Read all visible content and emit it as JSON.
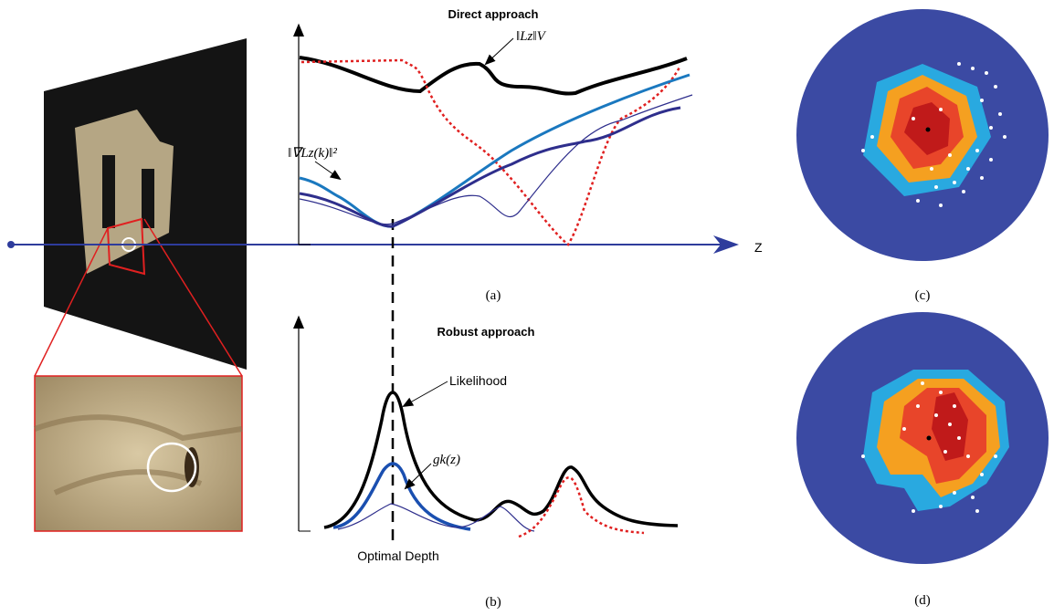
{
  "panel_a": {
    "title": "Direct approach",
    "label_norm_v": "‖Lz‖V",
    "label_grad": "‖∇Lz(k)‖²",
    "caption": "(a)"
  },
  "panel_b": {
    "title": "Robust approach",
    "label_likelihood": "Likelihood",
    "label_gk": "gk(z)",
    "label_depth": "Optimal Depth",
    "caption": "(b)"
  },
  "axis_label": "Z",
  "panel_c": {
    "caption": "(c)"
  },
  "panel_d": {
    "caption": "(d)"
  }
}
